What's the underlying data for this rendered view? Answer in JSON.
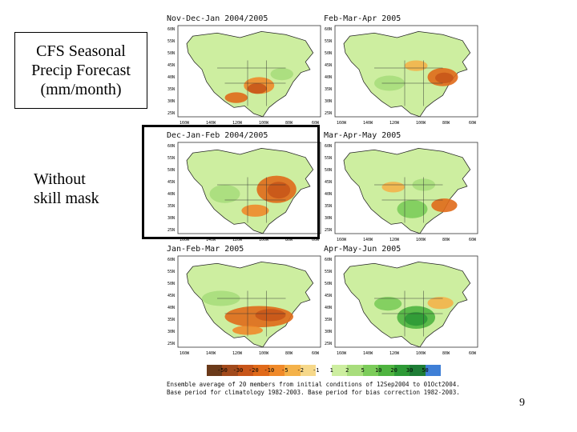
{
  "slide": {
    "title_lines": [
      "CFS Seasonal",
      "Precip Forecast",
      "(mm/month)"
    ],
    "mask_label_lines": [
      "Without",
      "skill mask"
    ],
    "page_number": "9"
  },
  "panels": [
    {
      "title": "Nov-Dec-Jan 2004/2005",
      "pattern": "dry-south"
    },
    {
      "title": "Feb-Mar-Apr 2005",
      "pattern": "dry-east"
    },
    {
      "title": "Dec-Jan-Feb 2004/2005",
      "pattern": "dry-east-strong"
    },
    {
      "title": "Mar-Apr-May 2005",
      "pattern": "mixed-east"
    },
    {
      "title": "Jan-Feb-Mar 2005",
      "pattern": "dry-wide"
    },
    {
      "title": "Apr-May-Jun 2005",
      "pattern": "wet-central"
    }
  ],
  "axes": {
    "lat_labels": [
      "60N",
      "55N",
      "50N",
      "45N",
      "40N",
      "35N",
      "30N",
      "25N"
    ],
    "lon_labels": [
      "160W",
      "140W",
      "120W",
      "100W",
      "80W",
      "60W"
    ]
  },
  "legend": {
    "labels": [
      "-50",
      "-30",
      "-20",
      "-10",
      "-5",
      "-2",
      "-1",
      "1",
      "2",
      "5",
      "10",
      "20",
      "30",
      "50"
    ],
    "colors": [
      "#6b3a1a",
      "#a14a1c",
      "#c8561a",
      "#e06a1a",
      "#f08a2a",
      "#f4b24a",
      "#f6d88a",
      "#ffffff",
      "#cdeea0",
      "#a8dd7c",
      "#7ccc5a",
      "#4fb440",
      "#2e9a36",
      "#1e7d36",
      "#3f7fd6"
    ]
  },
  "caption_lines": [
    "Ensemble average of 20 members from initial conditions of 12Sep2004 to 01Oct2004.",
    "Base period for climatology 1982-2003. Base period for bias correction 1982-2003."
  ]
}
